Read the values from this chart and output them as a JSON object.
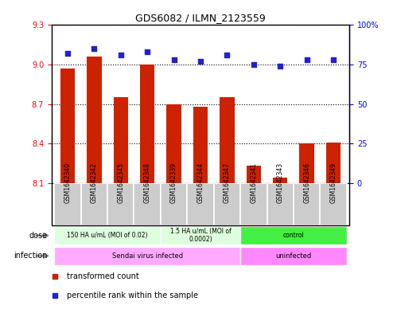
{
  "title": "GDS6082 / ILMN_2123559",
  "samples": [
    "GSM1642340",
    "GSM1642342",
    "GSM1642345",
    "GSM1642348",
    "GSM1642339",
    "GSM1642344",
    "GSM1642347",
    "GSM1642341",
    "GSM1642343",
    "GSM1642346",
    "GSM1642349"
  ],
  "transformed_counts": [
    8.97,
    9.06,
    8.75,
    9.0,
    8.7,
    8.68,
    8.75,
    8.23,
    8.14,
    8.4,
    8.41
  ],
  "percentile_ranks": [
    82,
    85,
    81,
    83,
    78,
    77,
    81,
    75,
    74,
    78,
    78
  ],
  "bar_color": "#cc2200",
  "dot_color": "#2222cc",
  "ylim_left": [
    8.1,
    9.3
  ],
  "ylim_right": [
    0,
    100
  ],
  "yticks_left": [
    8.1,
    8.4,
    8.7,
    9.0,
    9.3
  ],
  "yticks_right": [
    0,
    25,
    50,
    75,
    100
  ],
  "dose_groups": [
    {
      "label": "150 HA u/mL (MOI of 0.02)",
      "start": 0,
      "end": 4,
      "color": "#ddffdd"
    },
    {
      "label": "1.5 HA u/mL (MOI of\n0.0002)",
      "start": 4,
      "end": 7,
      "color": "#ddffdd"
    },
    {
      "label": "control",
      "start": 7,
      "end": 11,
      "color": "#44ee44"
    }
  ],
  "infection_groups": [
    {
      "label": "Sendai virus infected",
      "start": 0,
      "end": 7,
      "color": "#ffaaff"
    },
    {
      "label": "uninfected",
      "start": 7,
      "end": 11,
      "color": "#ff88ff"
    }
  ],
  "legend_items": [
    {
      "label": "transformed count",
      "color": "#cc2200",
      "marker": "s"
    },
    {
      "label": "percentile rank within the sample",
      "color": "#2222cc",
      "marker": "s"
    }
  ],
  "bar_bottom": 8.1,
  "bar_width": 0.55,
  "tick_label_bg": "#cccccc",
  "grid_linestyle": "dotted",
  "dot_size": 20
}
